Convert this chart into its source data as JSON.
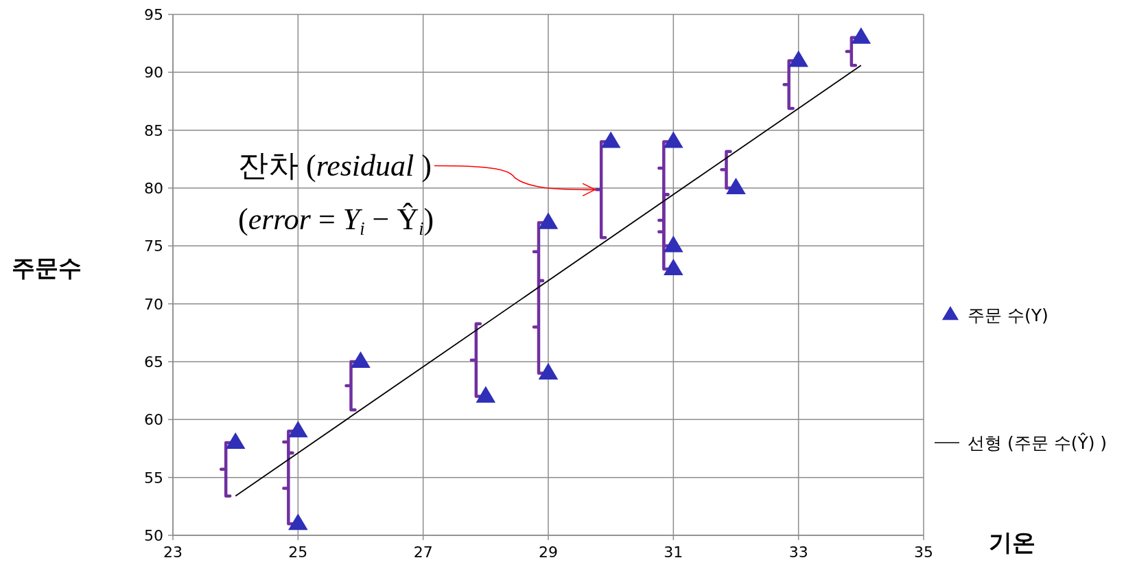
{
  "chart_data": {
    "type": "scatter",
    "xlabel": "기온",
    "ylabel": "주문수",
    "xlim": [
      23,
      35
    ],
    "xticks": [
      23,
      25,
      27,
      29,
      31,
      33,
      35
    ],
    "ylim": [
      50,
      95
    ],
    "yticks": [
      50,
      55,
      60,
      65,
      70,
      75,
      80,
      85,
      90,
      95
    ],
    "grid": true,
    "legend": "right",
    "marker": "triangle",
    "series": [
      {
        "name": "주문 수(Y)",
        "color": "#2f2fb8",
        "x": [
          24,
          25,
          25,
          26,
          28,
          29,
          29,
          30,
          31,
          31,
          31,
          32,
          33,
          34
        ],
        "values": [
          58,
          59,
          51,
          65,
          62,
          77,
          64,
          84,
          84,
          75,
          73,
          80,
          91,
          93
        ]
      },
      {
        "name": "선형 (주문 수(Ŷ) )",
        "type": "line",
        "color": "#000000",
        "line_style": "solid",
        "marker": "none",
        "x": [
          24,
          34
        ],
        "values": [
          53.4,
          90.6
        ]
      }
    ],
    "annotations": [
      "잔차 (residual )",
      "(error = Y$_{i}$ − Ŷ$_{i}$)"
    ]
  }
}
